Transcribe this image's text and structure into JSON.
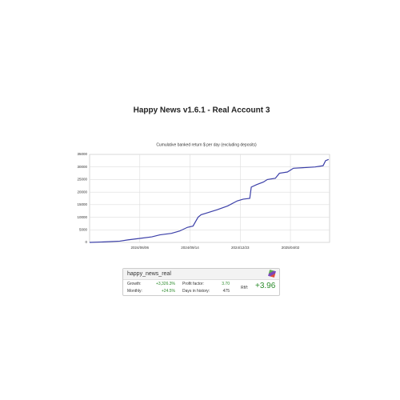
{
  "header": {
    "title": "Happy News v1.6.1 - Real Account 3"
  },
  "chart_data": {
    "type": "line",
    "title": "Cumulative banked return $ per day (excluding deposits)",
    "x": [
      "2024-02-27",
      "2024-03-27",
      "2024-04-27",
      "2024-05-13",
      "2024-06-06",
      "2024-06-30",
      "2024-07-16",
      "2024-08-08",
      "2024-08-24",
      "2024-09-09",
      "2024-09-20",
      "2024-09-30",
      "2024-10-06",
      "2024-10-22",
      "2024-11-07",
      "2024-11-28",
      "2024-12-17",
      "2024-12-29",
      "2025-01-11",
      "2025-01-14",
      "2025-01-25",
      "2025-02-07",
      "2025-02-15",
      "2025-03-03",
      "2025-03-11",
      "2025-03-27",
      "2025-04-08",
      "2025-04-27",
      "2025-05-21",
      "2025-06-06",
      "2025-06-11",
      "2025-06-17"
    ],
    "series": [
      {
        "name": "happy_news_real",
        "color": "#3b3fa8",
        "values": [
          0,
          200,
          500,
          1000,
          1600,
          2200,
          3000,
          3600,
          4500,
          6000,
          6500,
          10000,
          11000,
          12000,
          13000,
          14500,
          16500,
          17200,
          17500,
          22000,
          23000,
          24000,
          25000,
          25500,
          27500,
          28000,
          29500,
          29700,
          30000,
          30500,
          32500,
          33000
        ]
      }
    ],
    "xlim": [
      "2024-02-27",
      "2025-06-19"
    ],
    "xticks": [
      {
        "value": "2024-06-06",
        "label": "2024/06/06"
      },
      {
        "value": "2024-09-14",
        "label": "2024/09/14"
      },
      {
        "value": "2024-12-23",
        "label": "2024/12/23"
      },
      {
        "value": "2025-04-02",
        "label": "2025/04/02"
      }
    ],
    "ylim": [
      0,
      35000
    ],
    "yticks": [
      0,
      5000,
      10000,
      15000,
      20000,
      25000,
      30000,
      35000
    ],
    "grid": true
  },
  "stats": {
    "name": "happy_news_real",
    "rows": [
      [
        "Growth:",
        "+3,326.3%",
        "Profit factor:",
        "3.70"
      ],
      [
        "Monthly:",
        "+24.5%",
        "Days in history:",
        "475"
      ]
    ],
    "rf_label": "Rf/f:",
    "rf_value": "+3.96"
  }
}
